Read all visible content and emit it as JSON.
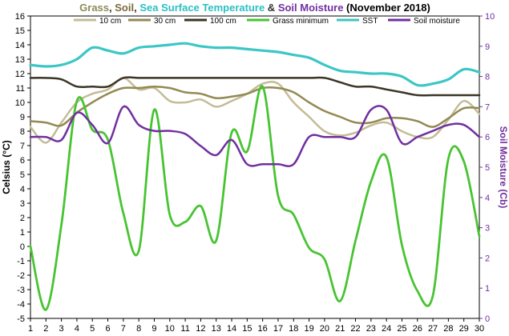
{
  "chart_data": {
    "type": "line",
    "title_parts": [
      {
        "text": "Grass",
        "color": "#8B8B5A"
      },
      {
        "text": ", ",
        "color": "#333333"
      },
      {
        "text": "Soil",
        "color": "#7A6A3C"
      },
      {
        "text": ", ",
        "color": "#333333"
      },
      {
        "text": "Sea Surface Temperature",
        "color": "#2BBFC4"
      },
      {
        "text": " & ",
        "color": "#333333"
      },
      {
        "text": "Soil Moisture",
        "color": "#7030A0"
      },
      {
        "text": " (November 2018)",
        "color": "#000000"
      }
    ],
    "ylabel_left": "Celsius (°C)",
    "ylabel_right": "Soil Moisture (Cb)",
    "y_left_range": [
      -5,
      16
    ],
    "y_right_range": [
      0,
      10
    ],
    "x": [
      1,
      2,
      3,
      4,
      5,
      6,
      7,
      8,
      9,
      10,
      11,
      12,
      13,
      14,
      15,
      16,
      17,
      18,
      19,
      20,
      21,
      22,
      23,
      24,
      25,
      26,
      27,
      28,
      29,
      30
    ],
    "x_ticks": [
      "1",
      "2",
      "3",
      "4",
      "5",
      "6",
      "7",
      "8",
      "9",
      "10",
      "11",
      "12",
      "13",
      "14",
      "15",
      "16",
      "17",
      "18",
      "19",
      "20",
      "21",
      "22",
      "23",
      "24",
      "25",
      "26",
      "27",
      "28",
      "29",
      "30"
    ],
    "y_left_ticks": [
      "-5",
      "-4",
      "-3",
      "-2",
      "-1",
      "0",
      "1",
      "2",
      "3",
      "4",
      "5",
      "6",
      "7",
      "8",
      "9",
      "10",
      "11",
      "12",
      "13",
      "14",
      "15",
      "16"
    ],
    "y_right_ticks": [
      "0",
      "1",
      "2",
      "3",
      "4",
      "5",
      "6",
      "7",
      "8",
      "9",
      "10"
    ],
    "grid": false,
    "legend_position": "top",
    "series": [
      {
        "name": "10 cm",
        "color": "#C4BC96",
        "axis": "left",
        "width": 2.5,
        "values": [
          8.3,
          7.2,
          8.6,
          10.0,
          10.6,
          10.9,
          11.7,
          10.9,
          11.0,
          10.1,
          10.0,
          10.2,
          9.7,
          10.1,
          10.6,
          11.3,
          11.3,
          10.0,
          9.0,
          8.0,
          7.7,
          7.9,
          8.4,
          8.6,
          8.0,
          7.6,
          7.6,
          8.8,
          10.1,
          9.2
        ]
      },
      {
        "name": "30 cm",
        "color": "#938953",
        "axis": "left",
        "width": 2.5,
        "values": [
          8.7,
          8.6,
          8.4,
          9.3,
          10.0,
          10.6,
          11.0,
          11.0,
          11.1,
          11.0,
          10.7,
          10.6,
          10.3,
          10.4,
          10.6,
          11.0,
          11.0,
          10.7,
          10.0,
          9.4,
          9.0,
          8.6,
          8.6,
          8.9,
          8.9,
          8.7,
          8.3,
          8.9,
          9.6,
          9.6
        ]
      },
      {
        "name": "100 cm",
        "color": "#3A3525",
        "axis": "left",
        "width": 2.5,
        "values": [
          11.7,
          11.7,
          11.6,
          11.1,
          11.1,
          11.1,
          11.7,
          11.7,
          11.7,
          11.7,
          11.7,
          11.7,
          11.7,
          11.7,
          11.7,
          11.7,
          11.7,
          11.7,
          11.7,
          11.7,
          11.4,
          11.1,
          11.1,
          10.9,
          10.7,
          10.5,
          10.5,
          10.5,
          10.5,
          10.5
        ]
      },
      {
        "name": "Grass minimum",
        "color": "#48C432",
        "axis": "left",
        "width": 2.8,
        "values": [
          0.0,
          -4.4,
          1.5,
          10.1,
          8.1,
          7.4,
          2.3,
          -0.3,
          9.5,
          2.2,
          1.7,
          2.8,
          0.4,
          7.9,
          6.6,
          11.1,
          3.5,
          2.2,
          -0.1,
          -0.9,
          -3.8,
          0.4,
          4.5,
          6.2,
          0.1,
          -3.1,
          -3.4,
          6.1,
          5.9,
          0.7
        ]
      },
      {
        "name": "SST",
        "color": "#3CC6C6",
        "axis": "left",
        "width": 3.2,
        "values": [
          12.6,
          12.5,
          12.6,
          13.0,
          13.8,
          13.6,
          13.4,
          13.8,
          13.9,
          14.0,
          14.1,
          13.9,
          13.8,
          13.8,
          13.7,
          13.6,
          13.5,
          13.3,
          13.1,
          12.6,
          12.2,
          12.1,
          12.0,
          12.0,
          11.8,
          11.2,
          11.3,
          11.6,
          12.3,
          12.1
        ]
      },
      {
        "name": "Soil moisture",
        "color": "#7030A0",
        "axis": "right",
        "width": 2.5,
        "values": [
          6.0,
          6.0,
          5.9,
          6.8,
          6.4,
          5.8,
          7.0,
          6.4,
          6.2,
          6.2,
          6.1,
          5.7,
          5.4,
          5.9,
          5.1,
          5.1,
          5.1,
          5.1,
          6.0,
          6.0,
          6.0,
          6.0,
          6.9,
          6.9,
          5.8,
          6.0,
          6.2,
          6.4,
          6.4,
          6.0
        ]
      }
    ]
  }
}
